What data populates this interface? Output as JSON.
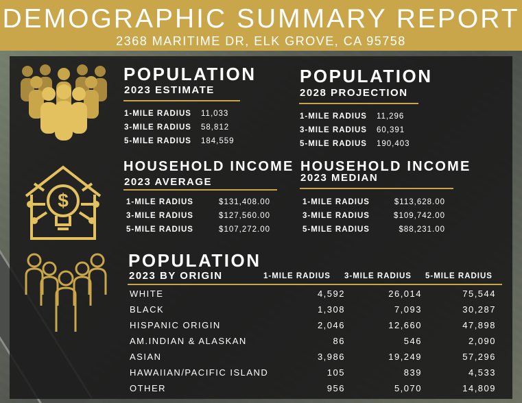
{
  "header": {
    "title": "DEMOGRAPHIC SUMMARY REPORT",
    "address": "2368 MARITIME DR, ELK GROVE, CA 95758"
  },
  "colors": {
    "gold": "#c9a64a",
    "panel": "#181818",
    "text": "#ffffff"
  },
  "icons": {
    "population": "people-group-icon",
    "income": "house-dollar-lightbulb-icon",
    "origin": "people-outline-group-icon"
  },
  "pop2023": {
    "title": "POPULATION",
    "subtitle": "2023 ESTIMATE",
    "rows": [
      {
        "label": "1-MILE RADIUS",
        "value": "11,033"
      },
      {
        "label": "3-MILE RADIUS",
        "value": "58,812"
      },
      {
        "label": "5-MILE RADIUS",
        "value": "184,559"
      }
    ]
  },
  "pop2028": {
    "title": "POPULATION",
    "subtitle": "2028 PROJECTION",
    "rows": [
      {
        "label": "1-MILE RADIUS",
        "value": "11,296"
      },
      {
        "label": "3-MILE RADIUS",
        "value": "60,391"
      },
      {
        "label": "5-MILE RADIUS",
        "value": "190,403"
      }
    ]
  },
  "incomeAvg": {
    "title": "HOUSEHOLD INCOME",
    "subtitle": "2023 AVERAGE",
    "rows": [
      {
        "label": "1-MILE RADIUS",
        "value": "$131,408.00"
      },
      {
        "label": "3-MILE RADIUS",
        "value": "$127,560.00"
      },
      {
        "label": "5-MILE RADIUS",
        "value": "$107,272.00"
      }
    ]
  },
  "incomeMed": {
    "title": "HOUSEHOLD INCOME",
    "subtitle": "2023 MEDIAN",
    "rows": [
      {
        "label": "1-MILE RADIUS",
        "value": "$113,628.00"
      },
      {
        "label": "3-MILE RADIUS",
        "value": "$109,742.00"
      },
      {
        "label": "5-MILE RADIUS",
        "value": "$88,231.00"
      }
    ]
  },
  "origin": {
    "title": "POPULATION",
    "subtitle": "2023 BY ORIGIN",
    "columns": [
      "1-MILE RADIUS",
      "3-MILE RADIUS",
      "5-MILE RADIUS"
    ],
    "rows": [
      {
        "label": "WHITE",
        "values": [
          "4,592",
          "26,014",
          "75,544"
        ]
      },
      {
        "label": "BLACK",
        "values": [
          "1,308",
          "7,093",
          "30,287"
        ]
      },
      {
        "label": "HISPANIC ORIGIN",
        "values": [
          "2,046",
          "12,660",
          "47,898"
        ]
      },
      {
        "label": "AM.INDIAN & ALASKAN",
        "values": [
          "86",
          "546",
          "2,090"
        ]
      },
      {
        "label": "ASIAN",
        "values": [
          "3,986",
          "19,249",
          "57,296"
        ]
      },
      {
        "label": "HAWAIIAN/PACIFIC ISLAND",
        "values": [
          "105",
          "839",
          "4,533"
        ]
      },
      {
        "label": "OTHER",
        "values": [
          "956",
          "5,070",
          "14,809"
        ]
      }
    ]
  }
}
